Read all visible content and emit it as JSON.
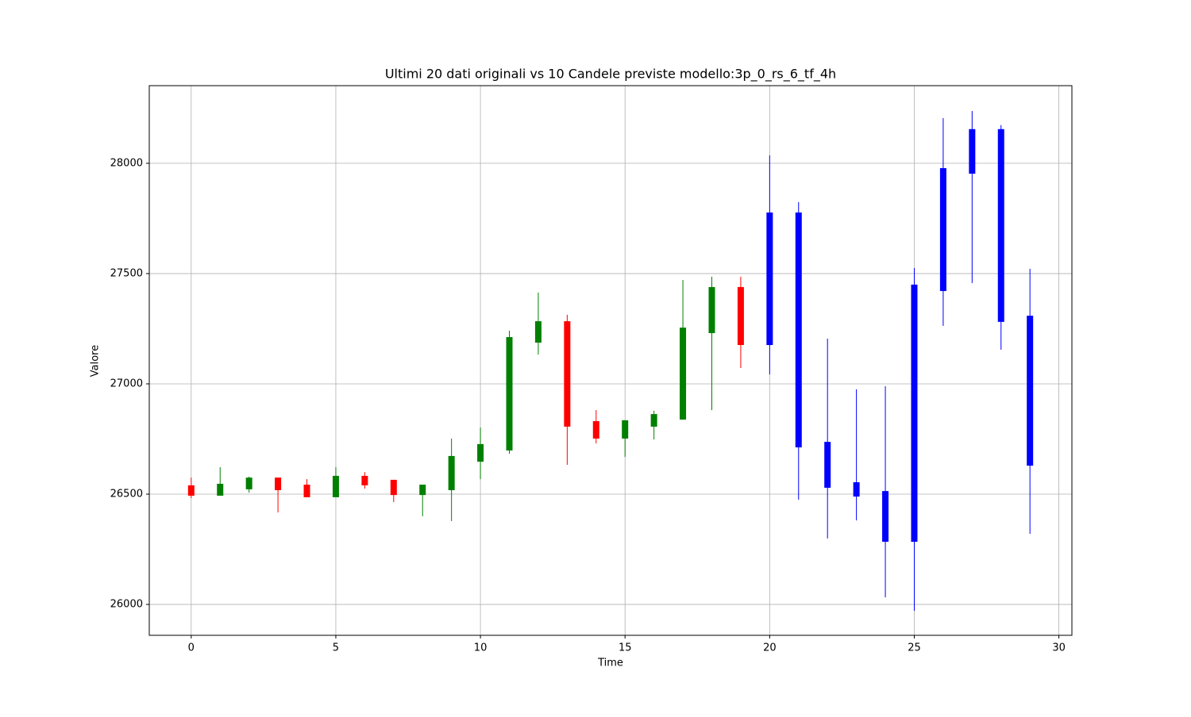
{
  "chart_data": {
    "type": "candlestick",
    "title": "Ultimi 20 dati originali vs 10 Candele previste modello:3p_0_rs_6_tf_4h",
    "x_label": "Time",
    "y_label": "Valore",
    "x": [
      0,
      1,
      2,
      3,
      4,
      5,
      6,
      7,
      8,
      9,
      10,
      11,
      12,
      13,
      14,
      15,
      16,
      17,
      18,
      19,
      20,
      21,
      22,
      23,
      24,
      25,
      26,
      27,
      28,
      29
    ],
    "open": [
      26540,
      26493,
      26522,
      26575,
      26543,
      26486,
      26583,
      26565,
      26496,
      26518,
      26647,
      26698,
      27187,
      27284,
      26831,
      26752,
      26806,
      26838,
      27230,
      27439,
      27777,
      27777,
      26737,
      26554,
      26514,
      27450,
      27978,
      28155,
      28155,
      27309
    ],
    "high": [
      26575,
      26622,
      26579,
      26575,
      26568,
      26622,
      26600,
      26565,
      26543,
      26752,
      26802,
      27241,
      27414,
      27313,
      26881,
      26835,
      26878,
      27471,
      27486,
      27486,
      28036,
      27824,
      27205,
      26975,
      26989,
      27525,
      28205,
      28237,
      28173,
      27522
    ],
    "low": [
      26482,
      26493,
      26507,
      26417,
      26486,
      26486,
      26525,
      26464,
      26400,
      26378,
      26568,
      26683,
      27133,
      26633,
      26730,
      26669,
      26748,
      26838,
      26881,
      27072,
      27043,
      26475,
      26299,
      26381,
      26032,
      25971,
      27263,
      27457,
      27155,
      26320
    ],
    "close": [
      26493,
      26547,
      26575,
      26518,
      26486,
      26583,
      26540,
      26496,
      26543,
      26673,
      26727,
      27212,
      27284,
      26806,
      26752,
      26835,
      26863,
      27255,
      27439,
      27176,
      27176,
      26712,
      26529,
      26489,
      26284,
      26284,
      27421,
      27953,
      27281,
      26629
    ],
    "colors": [
      "red",
      "green",
      "green",
      "red",
      "red",
      "green",
      "red",
      "red",
      "green",
      "green",
      "green",
      "green",
      "green",
      "red",
      "red",
      "green",
      "green",
      "green",
      "green",
      "red",
      "blue",
      "blue",
      "blue",
      "blue",
      "blue",
      "blue",
      "blue",
      "blue",
      "blue",
      "blue"
    ],
    "xlim": [
      -1.45,
      30.45
    ],
    "ylim": [
      25860,
      28352
    ],
    "xticks": [
      0,
      5,
      10,
      15,
      20,
      25,
      30
    ],
    "yticks": [
      26000,
      26500,
      27000,
      27500,
      28000
    ],
    "grid": true
  }
}
